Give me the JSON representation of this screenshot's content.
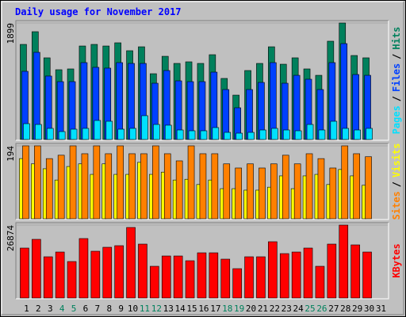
{
  "chart_data": [
    {
      "type": "bar",
      "title": "Daily usage for November 2017",
      "ylim": [
        0,
        1899
      ],
      "yticks": [
        1899
      ],
      "grid": true,
      "legend_separator": "/",
      "series": [
        {
          "name": "Hits",
          "color": "#00805c",
          "values": [
            1550,
            1757,
            1331,
            1137,
            1150,
            1524,
            1550,
            1524,
            1576,
            1447,
            1511,
            1072,
            1356,
            1240,
            1266,
            1240,
            1382,
            995,
            723,
            1124,
            1240,
            1511,
            1227,
            1331,
            1150,
            1046,
            1602,
            1899,
            1369,
            1331,
            null
          ]
        },
        {
          "name": "Files",
          "color": "#0040ff",
          "values": [
            1111,
            1421,
            1034,
            943,
            943,
            1253,
            1176,
            1163,
            1253,
            1240,
            1240,
            917,
            1124,
            956,
            943,
            943,
            1098,
            814,
            517,
            814,
            930,
            1253,
            917,
            1046,
            982,
            814,
            1253,
            1563,
            1059,
            1046,
            null
          ]
        },
        {
          "name": "Pages",
          "color": "#00e0ff",
          "values": [
            258,
            245,
            181,
            129,
            168,
            181,
            310,
            297,
            168,
            181,
            388,
            245,
            233,
            155,
            142,
            142,
            194,
            116,
            103,
            116,
            155,
            181,
            155,
            142,
            245,
            155,
            297,
            181,
            155,
            181,
            null
          ]
        }
      ]
    },
    {
      "type": "bar",
      "ylim": [
        0,
        194
      ],
      "yticks": [
        194
      ],
      "grid": true,
      "legend_separator": "/",
      "series": [
        {
          "name": "Visits",
          "color": "#ffff00",
          "values": [
            160,
            146,
            133,
            103,
            139,
            146,
            118,
            146,
            118,
            118,
            150,
            118,
            124,
            103,
            105,
            91,
            103,
            80,
            80,
            76,
            76,
            84,
            114,
            80,
            114,
            118,
            91,
            131,
            114,
            89,
            null
          ]
        },
        {
          "name": "Sites",
          "color": "#ff8000",
          "values": [
            194,
            194,
            160,
            169,
            194,
            173,
            194,
            173,
            194,
            173,
            173,
            194,
            173,
            154,
            194,
            173,
            173,
            146,
            135,
            146,
            135,
            146,
            169,
            146,
            173,
            160,
            135,
            194,
            173,
            165,
            null
          ]
        }
      ]
    },
    {
      "type": "bar",
      "ylim": [
        0,
        26874
      ],
      "yticks": [
        26874
      ],
      "grid": true,
      "categories": [
        "1",
        "2",
        "3",
        "4",
        "5",
        "6",
        "7",
        "8",
        "9",
        "10",
        "11",
        "12",
        "13",
        "14",
        "15",
        "16",
        "17",
        "18",
        "19",
        "20",
        "21",
        "22",
        "23",
        "24",
        "25",
        "26",
        "27",
        "28",
        "29",
        "30",
        "31"
      ],
      "label_colors": [
        "#000000",
        "#000000",
        "#000000",
        "#00805c",
        "#00805c",
        "#000000",
        "#000000",
        "#000000",
        "#000000",
        "#000000",
        "#00805c",
        "#00805c",
        "#000000",
        "#000000",
        "#000000",
        "#000000",
        "#000000",
        "#00805c",
        "#00805c",
        "#000000",
        "#000000",
        "#000000",
        "#000000",
        "#000000",
        "#00805c",
        "#00805c",
        "#000000",
        "#000000",
        "#000000",
        "#000000",
        "#000000"
      ],
      "series": [
        {
          "name": "KBytes",
          "color": "#ff0000",
          "values": [
            18404,
            21616,
            15190,
            16942,
            13437,
            21908,
            17234,
            18695,
            19279,
            25998,
            19863,
            11684,
            15482,
            15482,
            13729,
            16650,
            16650,
            14313,
            10808,
            15190,
            15190,
            20740,
            16358,
            16942,
            18404,
            11684,
            19863,
            26874,
            19571,
            16942,
            null
          ]
        }
      ]
    }
  ]
}
